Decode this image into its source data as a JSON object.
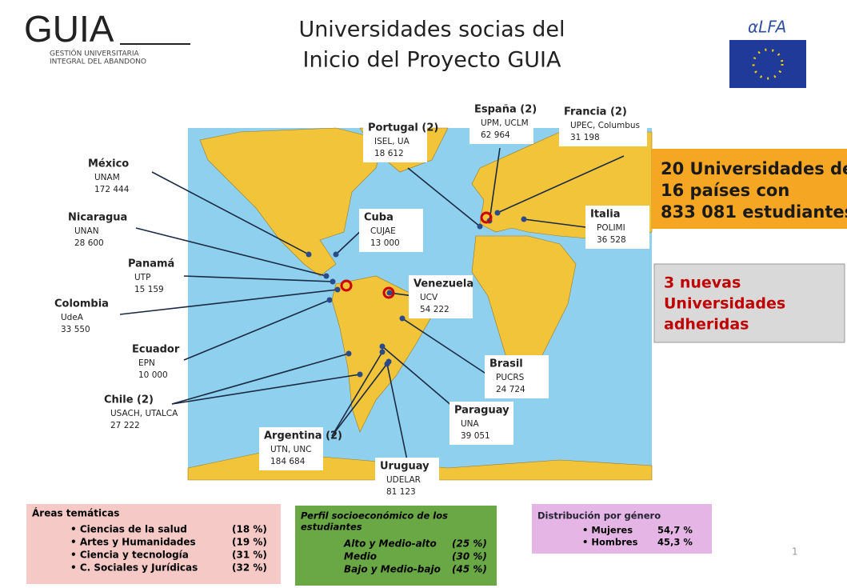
{
  "header": {
    "logo": "GUIA",
    "logo_subtitle": [
      "GESTIÓN UNIVERSITARIA",
      "INTEGRAL DEL ABANDONO"
    ],
    "title": [
      "Universidades socias del",
      "Inicio del Proyecto GUIA"
    ],
    "partner_logo": "αLFA"
  },
  "countries": [
    {
      "name": "México",
      "universities": "UNAM",
      "students": "172 444"
    },
    {
      "name": "Nicaragua",
      "universities": "UNAN",
      "students": "28 600"
    },
    {
      "name": "Panamá",
      "universities": "UTP",
      "students": "15 159"
    },
    {
      "name": "Colombia",
      "universities": "UdeA",
      "students": "33 550"
    },
    {
      "name": "Ecuador",
      "universities": "EPN",
      "students": "10 000"
    },
    {
      "name": "Chile (2)",
      "universities": "USACH, UTALCA",
      "students": "27 222"
    },
    {
      "name": "Argentina (2)",
      "universities": "UTN, UNC",
      "students": "184 684"
    },
    {
      "name": "Uruguay",
      "universities": "UDELAR",
      "students": "81 123"
    },
    {
      "name": "Paraguay",
      "universities": "UNA",
      "students": "39 051"
    },
    {
      "name": "Brasil",
      "universities": "PUCRS",
      "students": "24 724"
    },
    {
      "name": "Venezuela",
      "universities": "UCV",
      "students": "54 222"
    },
    {
      "name": "Cuba",
      "universities": "CUJAE",
      "students": "13 000"
    },
    {
      "name": "Portugal (2)",
      "universities": "ISEL, UA",
      "students": "18 612"
    },
    {
      "name": "España (2)",
      "universities": "UPM, UCLM",
      "students": "62 964"
    },
    {
      "name": "Francia (2)",
      "universities": "UPEC, Columbus",
      "students": "31 198"
    },
    {
      "name": "Italia",
      "universities": "POLIMI",
      "students": "36 528"
    }
  ],
  "summary": [
    "20 Universidades de",
    "16 países con",
    "833 081 estudiantes"
  ],
  "new_members": [
    "3 nuevas",
    "Universidades",
    "adheridas"
  ],
  "areas": {
    "title": "Áreas temáticas",
    "items": [
      [
        "• Ciencias de la salud",
        "(18 %)"
      ],
      [
        "• Artes y Humanidades",
        "(19 %)"
      ],
      [
        "• Ciencia y tecnología",
        "(31 %)"
      ],
      [
        "• C. Sociales y Jurídicas",
        "(32 %)"
      ]
    ]
  },
  "profile": {
    "title": [
      "Perfil socioeconómico  de los",
      "estudiantes"
    ],
    "items": [
      [
        "Alto y Medio-alto",
        "(25 %)"
      ],
      [
        "Medio",
        "(30 %)"
      ],
      [
        "Bajo y Medio-bajo",
        "(45 %)"
      ]
    ]
  },
  "gender": {
    "title": "Distribución  por género",
    "items": [
      [
        "• Mujeres",
        "54,7 %"
      ],
      [
        "• Hombres",
        "45,3 %"
      ]
    ]
  },
  "page_number": "1"
}
